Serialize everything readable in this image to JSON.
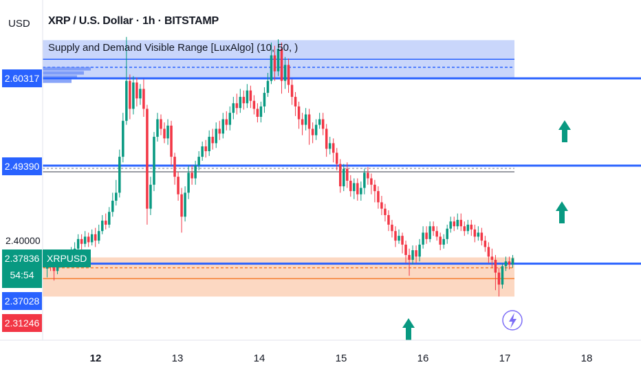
{
  "header": {
    "currency": "USD",
    "title": "XRP / U.S. Dollar · 1h · BITSTAMP",
    "indicator": "Supply and Demand Visible Range [LuxAlgo] (10, 50, )"
  },
  "price_labels": {
    "level_high": "2.60317",
    "level_mid": "2.49390",
    "tick": "2.40000",
    "last_price": "2.37836",
    "countdown": "54:54",
    "level_low": "2.37028",
    "level_red": "2.31246",
    "symbol": "XRPUSD"
  },
  "x_ticks": [
    {
      "label": "12",
      "bold": true
    },
    {
      "label": "13",
      "bold": false
    },
    {
      "label": "14",
      "bold": false
    },
    {
      "label": "15",
      "bold": false
    },
    {
      "label": "16",
      "bold": false
    },
    {
      "label": "17",
      "bold": false
    },
    {
      "label": "18",
      "bold": false
    }
  ],
  "colors": {
    "up": "#089981",
    "down": "#f23645",
    "level_line": "#2962ff",
    "supply_zone": "#c9d6fb",
    "demand_zone": "#fcd8c2",
    "demand_line": "#f57c2c"
  },
  "chart_data": {
    "type": "candlestick",
    "symbol": "XRPUSD",
    "timeframe": "1h",
    "exchange": "BITSTAMP",
    "x_ticks": [
      "12",
      "13",
      "14",
      "15",
      "16",
      "17",
      "18"
    ],
    "ylim": [
      2.29,
      2.68
    ],
    "levels": [
      2.60317,
      2.4939,
      2.37028
    ],
    "last_price": 2.37836,
    "supply_zone": {
      "top": 2.651,
      "bottom": 2.603,
      "mid": 2.617,
      "line": 2.627
    },
    "demand_zone": {
      "top": 2.379,
      "bottom": 2.33,
      "mid": 2.366,
      "line": 2.3525
    },
    "arrows_up": [
      "15 ~20:00",
      "17 ~18:00 (upper)",
      "17 ~18:00 (lower)"
    ],
    "candles": [
      [
        2.365,
        2.372,
        2.374,
        2.354
      ],
      [
        2.372,
        2.368,
        2.376,
        2.362
      ],
      [
        2.368,
        2.362,
        2.374,
        2.35
      ],
      [
        2.362,
        2.37,
        2.378,
        2.358
      ],
      [
        2.37,
        2.372,
        2.38,
        2.366
      ],
      [
        2.372,
        2.374,
        2.382,
        2.368
      ],
      [
        2.374,
        2.378,
        2.386,
        2.37
      ],
      [
        2.378,
        2.383,
        2.392,
        2.374
      ],
      [
        2.383,
        2.39,
        2.398,
        2.378
      ],
      [
        2.39,
        2.402,
        2.408,
        2.384
      ],
      [
        2.402,
        2.396,
        2.408,
        2.388
      ],
      [
        2.396,
        2.405,
        2.412,
        2.392
      ],
      [
        2.405,
        2.398,
        2.41,
        2.392
      ],
      [
        2.398,
        2.408,
        2.414,
        2.394
      ],
      [
        2.408,
        2.4,
        2.416,
        2.392
      ],
      [
        2.4,
        2.412,
        2.42,
        2.396
      ],
      [
        2.412,
        2.425,
        2.432,
        2.408
      ],
      [
        2.425,
        2.42,
        2.434,
        2.414
      ],
      [
        2.42,
        2.436,
        2.442,
        2.416
      ],
      [
        2.436,
        2.45,
        2.46,
        2.43
      ],
      [
        2.45,
        2.46,
        2.476,
        2.444
      ],
      [
        2.46,
        2.505,
        2.514,
        2.454
      ],
      [
        2.505,
        2.55,
        2.56,
        2.498
      ],
      [
        2.55,
        2.6,
        2.655,
        2.545
      ],
      [
        2.6,
        2.565,
        2.608,
        2.552
      ],
      [
        2.565,
        2.598,
        2.606,
        2.558
      ],
      [
        2.598,
        2.578,
        2.604,
        2.568
      ],
      [
        2.578,
        2.59,
        2.596,
        2.57
      ],
      [
        2.59,
        2.565,
        2.602,
        2.555
      ],
      [
        2.565,
        2.44,
        2.57,
        2.42
      ],
      [
        2.44,
        2.47,
        2.48,
        2.432
      ],
      [
        2.47,
        2.53,
        2.536,
        2.462
      ],
      [
        2.53,
        2.552,
        2.56,
        2.524
      ],
      [
        2.552,
        2.54,
        2.558,
        2.532
      ],
      [
        2.54,
        2.528,
        2.548,
        2.522
      ],
      [
        2.528,
        2.544,
        2.552,
        2.52
      ],
      [
        2.544,
        2.505,
        2.55,
        2.494
      ],
      [
        2.505,
        2.48,
        2.51,
        2.47
      ],
      [
        2.48,
        2.458,
        2.486,
        2.45
      ],
      [
        2.458,
        2.43,
        2.466,
        2.41
      ],
      [
        2.43,
        2.46,
        2.468,
        2.424
      ],
      [
        2.46,
        2.485,
        2.494,
        2.452
      ],
      [
        2.485,
        2.478,
        2.494,
        2.47
      ],
      [
        2.478,
        2.494,
        2.5,
        2.47
      ],
      [
        2.494,
        2.505,
        2.512,
        2.488
      ],
      [
        2.505,
        2.518,
        2.524,
        2.5
      ],
      [
        2.518,
        2.512,
        2.526,
        2.504
      ],
      [
        2.512,
        2.53,
        2.538,
        2.506
      ],
      [
        2.53,
        2.522,
        2.54,
        2.514
      ],
      [
        2.522,
        2.54,
        2.548,
        2.516
      ],
      [
        2.54,
        2.534,
        2.55,
        2.526
      ],
      [
        2.534,
        2.552,
        2.56,
        2.528
      ],
      [
        2.552,
        2.545,
        2.562,
        2.538
      ],
      [
        2.545,
        2.56,
        2.568,
        2.538
      ],
      [
        2.56,
        2.572,
        2.58,
        2.552
      ],
      [
        2.572,
        2.566,
        2.584,
        2.558
      ],
      [
        2.566,
        2.58,
        2.59,
        2.56
      ],
      [
        2.58,
        2.572,
        2.588,
        2.564
      ],
      [
        2.572,
        2.588,
        2.596,
        2.566
      ],
      [
        2.588,
        2.575,
        2.594,
        2.566
      ],
      [
        2.575,
        2.565,
        2.582,
        2.558
      ],
      [
        2.565,
        2.555,
        2.572,
        2.548
      ],
      [
        2.555,
        2.568,
        2.574,
        2.548
      ],
      [
        2.568,
        2.585,
        2.592,
        2.56
      ],
      [
        2.585,
        2.6,
        2.61,
        2.58
      ],
      [
        2.6,
        2.632,
        2.648,
        2.596
      ],
      [
        2.632,
        2.612,
        2.644,
        2.6
      ],
      [
        2.612,
        2.64,
        2.652,
        2.606
      ],
      [
        2.64,
        2.6,
        2.648,
        2.584
      ],
      [
        2.6,
        2.62,
        2.63,
        2.59
      ],
      [
        2.62,
        2.595,
        2.628,
        2.585
      ],
      [
        2.595,
        2.58,
        2.602,
        2.57
      ],
      [
        2.58,
        2.568,
        2.586,
        2.556
      ],
      [
        2.568,
        2.552,
        2.574,
        2.54
      ],
      [
        2.552,
        2.545,
        2.56,
        2.532
      ],
      [
        2.545,
        2.558,
        2.566,
        2.538
      ],
      [
        2.558,
        2.54,
        2.565,
        2.52
      ],
      [
        2.54,
        2.532,
        2.548,
        2.522
      ],
      [
        2.532,
        2.545,
        2.552,
        2.526
      ],
      [
        2.545,
        2.552,
        2.56,
        2.54
      ],
      [
        2.552,
        2.54,
        2.56,
        2.532
      ],
      [
        2.54,
        2.515,
        2.546,
        2.505
      ],
      [
        2.515,
        2.522,
        2.53,
        2.508
      ],
      [
        2.522,
        2.51,
        2.528,
        2.498
      ],
      [
        2.51,
        2.496,
        2.516,
        2.488
      ],
      [
        2.496,
        2.468,
        2.502,
        2.46
      ],
      [
        2.468,
        2.49,
        2.496,
        2.462
      ],
      [
        2.49,
        2.475,
        2.498,
        2.466
      ],
      [
        2.475,
        2.462,
        2.482,
        2.455
      ],
      [
        2.462,
        2.472,
        2.478,
        2.452
      ],
      [
        2.472,
        2.458,
        2.478,
        2.45
      ],
      [
        2.458,
        2.466,
        2.474,
        2.45
      ],
      [
        2.466,
        2.485,
        2.49,
        2.458
      ],
      [
        2.485,
        2.478,
        2.492,
        2.47
      ],
      [
        2.478,
        2.47,
        2.484,
        2.458
      ],
      [
        2.47,
        2.462,
        2.476,
        2.448
      ],
      [
        2.462,
        2.448,
        2.468,
        2.44
      ],
      [
        2.448,
        2.44,
        2.456,
        2.432
      ],
      [
        2.44,
        2.432,
        2.446,
        2.424
      ],
      [
        2.432,
        2.42,
        2.438,
        2.412
      ],
      [
        2.42,
        2.412,
        2.426,
        2.404
      ],
      [
        2.412,
        2.4,
        2.418,
        2.392
      ],
      [
        2.4,
        2.406,
        2.414,
        2.396
      ],
      [
        2.406,
        2.395,
        2.41,
        2.384
      ],
      [
        2.395,
        2.382,
        2.4,
        2.372
      ],
      [
        2.382,
        2.376,
        2.39,
        2.356
      ],
      [
        2.376,
        2.388,
        2.394,
        2.37
      ],
      [
        2.388,
        2.38,
        2.394,
        2.372
      ],
      [
        2.38,
        2.395,
        2.402,
        2.374
      ],
      [
        2.395,
        2.41,
        2.418,
        2.39
      ],
      [
        2.41,
        2.402,
        2.418,
        2.396
      ],
      [
        2.402,
        2.418,
        2.424,
        2.398
      ],
      [
        2.418,
        2.412,
        2.424,
        2.406
      ],
      [
        2.412,
        2.405,
        2.418,
        2.4
      ],
      [
        2.405,
        2.395,
        2.41,
        2.388
      ],
      [
        2.395,
        2.402,
        2.408,
        2.39
      ],
      [
        2.402,
        2.415,
        2.42,
        2.396
      ],
      [
        2.415,
        2.424,
        2.43,
        2.41
      ],
      [
        2.424,
        2.418,
        2.43,
        2.412
      ],
      [
        2.418,
        2.426,
        2.434,
        2.414
      ],
      [
        2.426,
        2.418,
        2.434,
        2.412
      ],
      [
        2.418,
        2.412,
        2.424,
        2.406
      ],
      [
        2.412,
        2.42,
        2.426,
        2.408
      ],
      [
        2.42,
        2.414,
        2.426,
        2.406
      ],
      [
        2.414,
        2.405,
        2.42,
        2.398
      ],
      [
        2.405,
        2.41,
        2.418,
        2.4
      ],
      [
        2.41,
        2.4,
        2.416,
        2.394
      ],
      [
        2.4,
        2.392,
        2.406,
        2.386
      ],
      [
        2.392,
        2.38,
        2.398,
        2.372
      ],
      [
        2.38,
        2.376,
        2.39,
        2.366
      ],
      [
        2.376,
        2.36,
        2.382,
        2.338
      ],
      [
        2.36,
        2.345,
        2.366,
        2.33
      ],
      [
        2.345,
        2.368,
        2.372,
        2.34
      ],
      [
        2.368,
        2.374,
        2.38,
        2.362
      ],
      [
        2.374,
        2.37,
        2.38,
        2.364
      ],
      [
        2.37,
        2.378,
        2.382,
        2.366
      ]
    ]
  }
}
